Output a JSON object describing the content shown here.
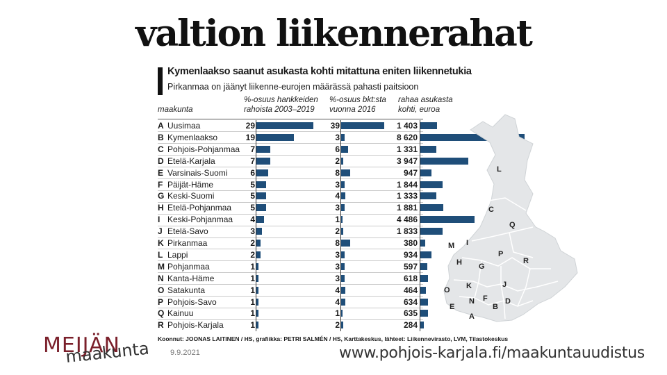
{
  "slide": {
    "title": "valtion liikennerahat",
    "date": "9.9.2021",
    "url": "www.pohjois-karjala.fi/maakuntauudistus",
    "logo_top": "MEIJÄN",
    "logo_bottom": "maakunta"
  },
  "colors": {
    "bar": "#1f4e79",
    "map_fill": "#e4e6e8",
    "map_stroke": "#ffffff",
    "logo": "#7a1f2a"
  },
  "chart_data": {
    "type": "bar",
    "title": "Kymenlaakso saanut asukasta kohti mitattuna eniten liikennetukia",
    "subtitle": "Pirkanmaa on jäänyt liikenne-eurojen määrässä pahasti paitsioon",
    "region_header": "maakunta",
    "columns": [
      {
        "header1": "%-osuus hankkeiden",
        "header2": "rahoista 2003–2019"
      },
      {
        "header1": "%-osuus bkt:sta",
        "header2": "vuonna 2016"
      },
      {
        "header1": "rahaa asukasta",
        "header2": "kohti, euroa"
      }
    ],
    "letters": [
      "A",
      "B",
      "C",
      "D",
      "E",
      "F",
      "G",
      "H",
      "I",
      "J",
      "K",
      "L",
      "M",
      "N",
      "O",
      "P",
      "Q",
      "R"
    ],
    "categories": [
      "Uusimaa",
      "Kymenlaakso",
      "Pohjois-Pohjanmaa",
      "Etelä-Karjala",
      "Varsinais-Suomi",
      "Päijät-Häme",
      "Keski-Suomi",
      "Etelä-Pohjanmaa",
      "Keski-Pohjanmaa",
      "Etelä-Savo",
      "Pirkanmaa",
      "Lappi",
      "Pohjanmaa",
      "Kanta-Häme",
      "Satakunta",
      "Pohjois-Savo",
      "Kainuu",
      "Pohjois-Karjala"
    ],
    "series": [
      {
        "name": "%-osuus hankkeiden rahoista 2003–2019",
        "values": [
          29,
          19,
          7,
          7,
          6,
          5,
          5,
          5,
          4,
          3,
          2,
          2,
          1,
          1,
          1,
          1,
          1,
          1
        ]
      },
      {
        "name": "%-osuus bkt:sta vuonna 2016",
        "values": [
          39,
          3,
          6,
          2,
          8,
          3,
          4,
          3,
          1,
          2,
          8,
          3,
          3,
          3,
          4,
          4,
          1,
          2
        ]
      },
      {
        "name": "rahaa asukasta kohti, euroa",
        "values": [
          1403,
          8620,
          1331,
          3947,
          947,
          1844,
          1333,
          1881,
          4486,
          1833,
          380,
          934,
          597,
          618,
          464,
          634,
          635,
          284
        ],
        "labels": [
          "1 403",
          "8 620",
          "1 331",
          "3 947",
          "947",
          "1 844",
          "1 333",
          "1 881",
          "4 486",
          "1 833",
          "380",
          "934",
          "597",
          "618",
          "464",
          "634",
          "635",
          "284"
        ]
      }
    ],
    "source": "Koonnut: JOONAS LAITINEN / HS, grafiikka: PETRI SALMÉN / HS, Karttakeskus, lähteet: Liikennevirasto, LVM, Tilastokeskus",
    "map_labels": [
      "L",
      "C",
      "Q",
      "M",
      "I",
      "P",
      "R",
      "H",
      "G",
      "O",
      "K",
      "J",
      "N",
      "F",
      "D",
      "E",
      "B",
      "A"
    ]
  }
}
